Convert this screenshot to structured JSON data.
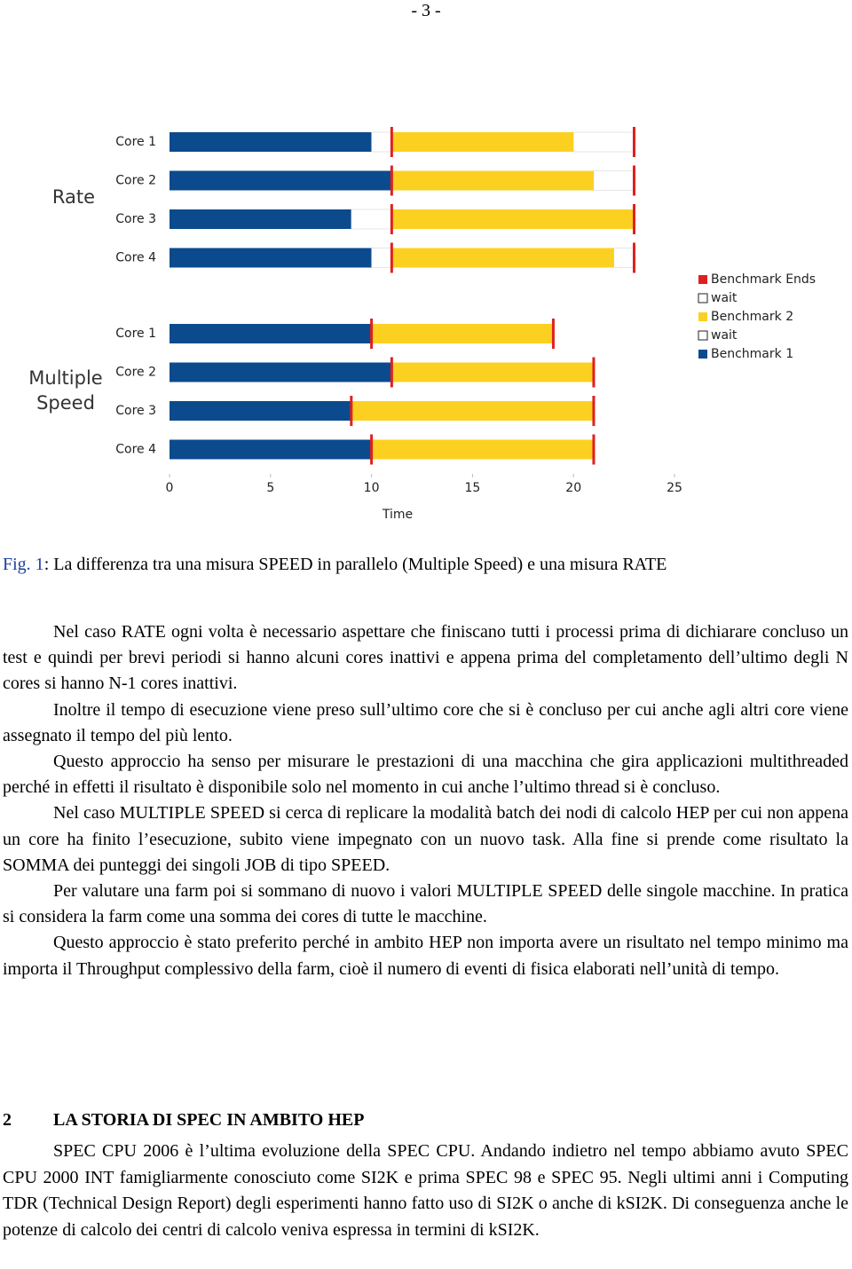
{
  "page_number": "- 3 -",
  "chart_data": {
    "type": "gantt-bar",
    "groups": [
      {
        "label": "Rate",
        "categories": [
          "Core 1",
          "Core 2",
          "Core 3",
          "Core 4"
        ]
      },
      {
        "label": "Multiple Speed",
        "categories": [
          "Core 1",
          "Core 2",
          "Core 3",
          "Core 4"
        ]
      }
    ],
    "series": [
      {
        "name": "Benchmark 1",
        "color": "#0b4a8c",
        "values": [
          10,
          11,
          9,
          10,
          10,
          11,
          9,
          10
        ]
      },
      {
        "name": "wait",
        "color": "#ffffff",
        "values": [
          1,
          0,
          2,
          1,
          0,
          0,
          0,
          0
        ]
      },
      {
        "name": "Benchmark 2",
        "color": "#fcd020",
        "values": [
          9,
          10,
          12,
          11,
          9,
          10,
          12,
          11
        ]
      },
      {
        "name": "wait",
        "color": "#ffffff",
        "values": [
          3,
          2,
          0,
          1,
          0,
          0,
          0,
          0
        ]
      },
      {
        "name": "Benchmark Ends",
        "color": "#e02020",
        "marker": true,
        "values": [
          [
            11,
            23
          ],
          [
            11,
            23
          ],
          [
            11,
            23
          ],
          [
            11,
            23
          ],
          [
            10,
            19
          ],
          [
            11,
            21
          ],
          [
            9,
            21
          ],
          [
            10,
            21
          ]
        ]
      }
    ],
    "x_label": "Time",
    "xlim": [
      0,
      25
    ],
    "xticks": [
      0,
      5,
      10,
      15,
      20,
      25
    ]
  },
  "caption": {
    "label": "Fig. 1",
    "text": ": La differenza tra una misura SPEED in parallelo (Multiple Speed) e una misura RATE"
  },
  "paragraphs": [
    "Nel caso RATE ogni volta è necessario aspettare che finiscano tutti i processi prima di dichiarare concluso un test e quindi per brevi periodi si hanno alcuni cores inattivi e appena prima del completamento dell’ultimo degli N cores si hanno N-1 cores inattivi.",
    "Inoltre il tempo di esecuzione viene preso sull’ultimo core che si è concluso per cui anche agli altri core viene assegnato il tempo del più lento.",
    "Questo approccio ha senso per misurare le prestazioni di una macchina che gira applicazioni multithreaded perché in effetti il risultato è disponibile solo nel momento in cui anche l’ultimo thread si è concluso.",
    "Nel caso MULTIPLE SPEED si cerca di replicare la modalità batch dei nodi di calcolo HEP per cui non appena un core ha finito l’esecuzione, subito viene impegnato con un nuovo task. Alla fine si prende come risultato la SOMMA dei punteggi dei singoli JOB di tipo SPEED.",
    "Per valutare una farm poi si sommano di nuovo i valori MULTIPLE SPEED delle singole macchine. In pratica si considera la farm come una somma dei cores di tutte le macchine.",
    "Questo approccio è stato preferito perché in ambito HEP non importa avere un risultato nel tempo minimo ma importa il Throughput complessivo della farm, cioè il numero di eventi di fisica elaborati nell’unità di tempo."
  ],
  "section": {
    "number": "2",
    "title": "LA STORIA DI SPEC IN AMBITO HEP",
    "paragraphs": [
      "SPEC CPU 2006 è l’ultima evoluzione della SPEC CPU. Andando indietro nel tempo abbiamo avuto SPEC CPU 2000 INT famigliarmente conosciuto come SI2K e prima SPEC 98 e SPEC 95. Negli ultimi anni i Computing TDR (Technical Design Report) degli esperimenti hanno fatto uso di SI2K o anche di kSI2K. Di conseguenza anche le potenze di calcolo dei centri di calcolo veniva espressa in termini di kSI2K."
    ]
  }
}
